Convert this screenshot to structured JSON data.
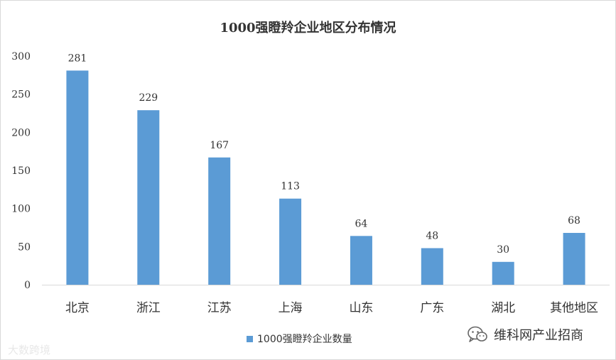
{
  "chart_data": {
    "type": "bar",
    "title": "1000强瞪羚企业地区分布情况",
    "categories": [
      "北京",
      "浙江",
      "江苏",
      "上海",
      "山东",
      "广东",
      "湖北",
      "其他地区"
    ],
    "series": [
      {
        "name": "1000强瞪羚企业数量",
        "values": [
          281,
          229,
          167,
          113,
          64,
          48,
          30,
          68
        ]
      }
    ],
    "ylim": [
      0,
      300
    ],
    "yticks": [
      0,
      50,
      100,
      150,
      200,
      250,
      300
    ],
    "grid": false,
    "legend_position": "bottom",
    "colors": {
      "bar": "#5b9bd5",
      "axis": "#d9d9d9",
      "text": "#333333"
    }
  },
  "watermarks": {
    "left": "大数跨境",
    "right": "维科网产业招商",
    "right_icon": "wechat-icon"
  }
}
